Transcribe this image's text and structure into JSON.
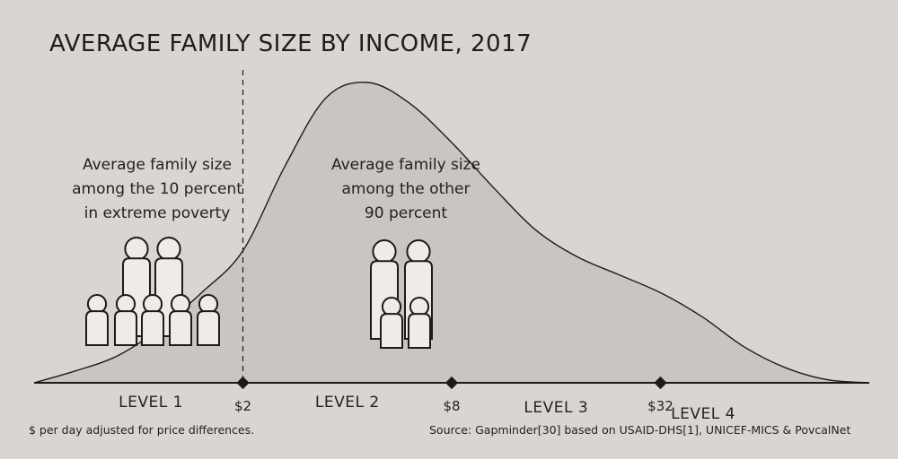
{
  "chart_data": {
    "type": "area",
    "title": "AVERAGE FAMILY SIZE BY INCOME, 2017",
    "x_scale": "log2",
    "xlabel": "$ per day adjusted for price differences.",
    "x_ticks": [
      {
        "value": 2,
        "label": "$2"
      },
      {
        "value": 8,
        "label": "$8"
      },
      {
        "value": 32,
        "label": "$32"
      }
    ],
    "levels": [
      {
        "label": "LEVEL 1",
        "from": 0.5,
        "to": 2
      },
      {
        "label": "LEVEL 2",
        "from": 2,
        "to": 8
      },
      {
        "label": "LEVEL 3",
        "from": 8,
        "to": 32
      },
      {
        "label": "LEVEL 4",
        "from": 32,
        "to": 128
      }
    ],
    "xlim": [
      0.5,
      128
    ],
    "ylim": [
      0,
      1
    ],
    "series": [
      {
        "x": [
          0.5,
          0.66,
          0.87,
          1.15,
          1.52,
          2,
          2.64,
          3.48,
          4.59,
          6.06,
          8,
          10.56,
          13.93,
          18.38,
          24.25,
          32,
          42.2,
          55.7,
          73.5,
          97,
          128
        ],
        "y": [
          0.0,
          0.04,
          0.09,
          0.18,
          0.3,
          0.44,
          0.72,
          0.95,
          1.0,
          0.93,
          0.8,
          0.65,
          0.51,
          0.42,
          0.36,
          0.3,
          0.22,
          0.12,
          0.05,
          0.01,
          0.0
        ]
      }
    ],
    "cutoff": {
      "x": 2,
      "style": "dashed"
    },
    "annotations": [
      {
        "text_lines": [
          "Average family size",
          "among the 10 percent",
          "in extreme poverty"
        ],
        "family": {
          "adults": 2,
          "children": 5
        }
      },
      {
        "text_lines": [
          "Average family size",
          "among the other",
          "90 percent"
        ],
        "family": {
          "adults": 2,
          "children": 2
        }
      }
    ],
    "source": "Source: Gapminder[30] based on USAID-DHS[1], UNICEF-MICS & PovcalNet",
    "grid": false,
    "legend": "none"
  },
  "colors": {
    "background": "#d9d6d1",
    "area_fill": "#c9c6c2",
    "line": "#1b1b1b",
    "person_fill": "#efece8"
  }
}
